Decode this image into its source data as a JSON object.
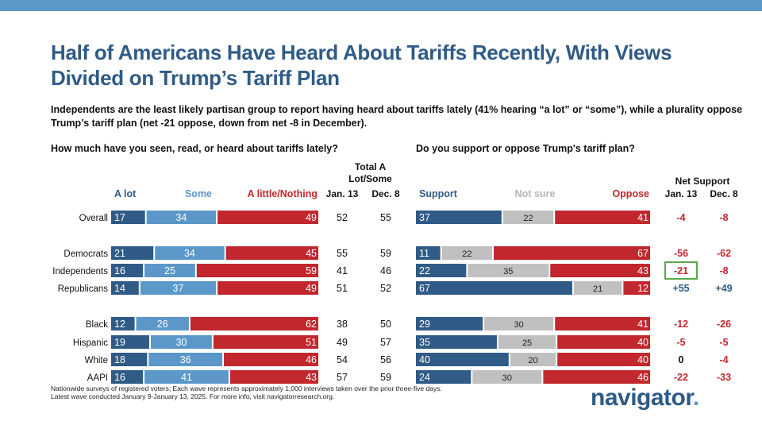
{
  "title": "Half of Americans Have Heard About Tariffs Recently, With Views Divided on Trump’s Tariff Plan",
  "subtitle": "Independents are the least likely partisan group to report having heard about tariffs lately (41% hearing “a lot” or “some”), while a plurality oppose Trump’s tariff plan (net -21 oppose, down from net -8 in December).",
  "colors": {
    "dark_blue": "#2f5b86",
    "light_blue": "#5b98c9",
    "red": "#c1272d",
    "gray": "#c0c0c0",
    "green_box": "#5aa84a",
    "net_blue": "#2f5b86",
    "net_red": "#c1272d"
  },
  "footnote": {
    "line1": "Nationwide surveys of registered voters; Each wave represents approximately 1,000 interviews taken over the prior three-five days.",
    "line2": "Latest wave conducted January 9-January 13, 2025. For more info, visit navigatorresearch.org."
  },
  "logo": {
    "text": "navigator",
    "dot": "."
  },
  "chart_data": [
    {
      "type": "bar",
      "stacked": true,
      "orientation": "horizontal",
      "title": "How much have you seen, read, or heard about tariffs lately?",
      "categories": [
        "Overall",
        "Democrats",
        "Independents",
        "Republicans",
        "Black",
        "Hispanic",
        "White",
        "AAPI"
      ],
      "series": [
        {
          "name": "A lot",
          "values": [
            17,
            21,
            16,
            14,
            12,
            19,
            18,
            16
          ]
        },
        {
          "name": "Some",
          "values": [
            34,
            34,
            25,
            37,
            26,
            30,
            36,
            41
          ]
        },
        {
          "name": "A little/Nothing",
          "values": [
            49,
            45,
            59,
            49,
            62,
            51,
            46,
            43
          ]
        }
      ],
      "summary_columns": {
        "header": "Total A Lot/Some",
        "columns": [
          {
            "label": "Jan. 13",
            "values": [
              52,
              55,
              41,
              51,
              38,
              49,
              54,
              57
            ]
          },
          {
            "label": "Dec. 8",
            "values": [
              55,
              59,
              46,
              52,
              50,
              57,
              56,
              59
            ]
          }
        ]
      }
    },
    {
      "type": "bar",
      "stacked": true,
      "orientation": "horizontal",
      "title": "Do you support or oppose Trump's tariff plan?",
      "categories": [
        "Overall",
        "Democrats",
        "Independents",
        "Republicans",
        "Black",
        "Hispanic",
        "White",
        "AAPI"
      ],
      "series": [
        {
          "name": "Support",
          "values": [
            37,
            11,
            22,
            67,
            29,
            35,
            40,
            24
          ]
        },
        {
          "name": "Not sure",
          "values": [
            22,
            22,
            35,
            21,
            30,
            25,
            20,
            30
          ]
        },
        {
          "name": "Oppose",
          "values": [
            41,
            67,
            43,
            12,
            41,
            40,
            40,
            46
          ]
        }
      ],
      "summary_columns": {
        "header": "Net Support",
        "columns": [
          {
            "label": "Jan. 13",
            "values": [
              "-4",
              "-56",
              "-21",
              "+55",
              "-12",
              "-5",
              "0",
              "-22"
            ]
          },
          {
            "label": "Dec. 8",
            "values": [
              "-8",
              "-62",
              "-8",
              "+49",
              "-26",
              "-5",
              "-4",
              "-33"
            ]
          }
        ],
        "highlighted_cell": {
          "column": "Jan. 13",
          "category": "Independents"
        }
      }
    }
  ]
}
